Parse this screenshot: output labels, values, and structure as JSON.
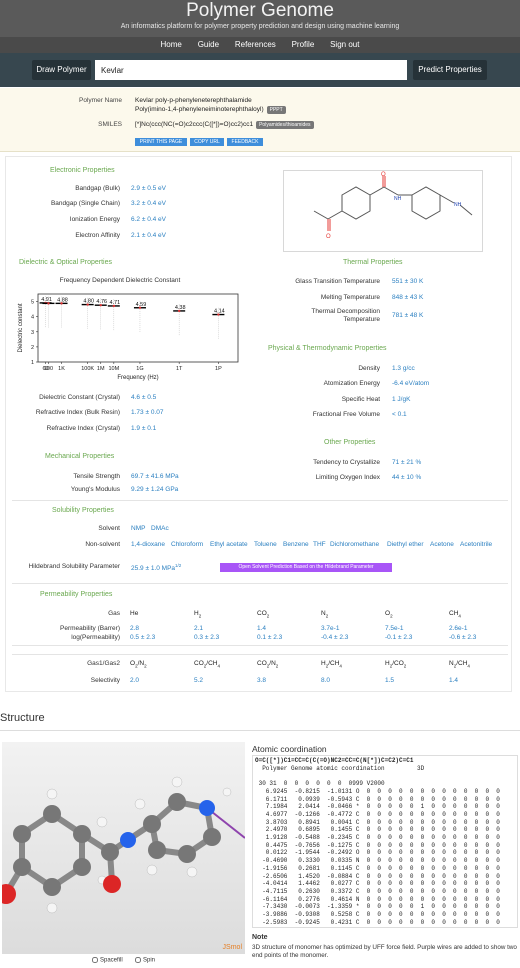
{
  "header": {
    "title": "Polymer Genome",
    "tagline": "An informatics platform for polymer property prediction and design using machine learning"
  },
  "nav": [
    "Home",
    "Guide",
    "References",
    "Profile",
    "Sign out"
  ],
  "search": {
    "draw_label": "Draw Polymer",
    "value": "Kevlar",
    "predict_label": "Predict Properties"
  },
  "info": {
    "name_label": "Polymer Name",
    "name_value": "Kevlar   poly-p-phenyleneterephthalamide",
    "name_value2": "Poly(imino-1,4-phenyleneiminoterephthaloyl)",
    "name_badge": "PPPT",
    "smiles_label": "SMILES",
    "smiles_value": "[*]Nc(ccc(NC(=O)c2ccc(C([*])=O)cc2)cc1",
    "smiles_badge": "Polyamides/thioamides",
    "buttons": [
      "PRINT THIS PAGE",
      "COPY URL",
      "FEEDBACK"
    ]
  },
  "electronic": {
    "title": "Electronic Properties",
    "rows": [
      {
        "label": "Bandgap (Bulk)",
        "value": "2.9 ± 0.5 eV"
      },
      {
        "label": "Bandgap (Single Chain)",
        "value": "3.2 ± 0.4 eV"
      },
      {
        "label": "Ionization Energy",
        "value": "6.2 ± 0.4 eV"
      },
      {
        "label": "Electron Affinity",
        "value": "2.1 ± 0.4 eV"
      }
    ]
  },
  "dielectric": {
    "title": "Dielectric & Optical Properties",
    "chart_title": "Frequency Dependent Dielectric Constant",
    "rows": [
      {
        "label": "Dielectric Constant (Crystal)",
        "value": "4.6 ± 0.5"
      },
      {
        "label": "Refractive Index (Bulk Resin)",
        "value": "1.73 ± 0.07"
      },
      {
        "label": "Refractive Index (Crystal)",
        "value": "1.9 ± 0.1"
      }
    ]
  },
  "chart_data": {
    "type": "scatter",
    "title": "Frequency Dependent Dielectric Constant",
    "xlabel": "Frequency (Hz)",
    "ylabel": "Dielectric constant",
    "x_ticks": [
      "60",
      "100",
      "1K",
      "100K",
      "1M",
      "10M",
      "1G",
      "1T",
      "1P"
    ],
    "y_ticks": [
      "1",
      "2",
      "3",
      "4",
      "5"
    ],
    "ylim": [
      1,
      5.5
    ],
    "x_log_hz": [
      1.78,
      2.0,
      3.0,
      5.0,
      6.0,
      7.0,
      9.0,
      12.0,
      15.0
    ],
    "values": [
      4.91,
      4.88,
      4.88,
      4.8,
      4.76,
      4.71,
      4.59,
      4.38,
      4.14
    ],
    "labels": [
      "4.91",
      "",
      "4.88",
      "4.80",
      "4.76",
      "4.71",
      "4.59",
      "4.38",
      "4.14"
    ],
    "grid": false
  },
  "mechanical": {
    "title": "Mechanical Properties",
    "rows": [
      {
        "label": "Tensile Strength",
        "value": "69.7 ± 41.6 MPa"
      },
      {
        "label": "Young's Modulus",
        "value": "9.29 ± 1.24 GPa"
      }
    ]
  },
  "thermal": {
    "title": "Thermal Properties",
    "rows": [
      {
        "label": "Glass Transition Temperature",
        "value": "551 ± 30 K"
      },
      {
        "label": "Melting Temperature",
        "value": "848 ± 43 K"
      },
      {
        "label": "Thermal Decomposition",
        "label2": "Temperature",
        "value": "781 ± 48 K"
      }
    ]
  },
  "physical": {
    "title": "Physical & Thermodynamic Properties",
    "rows": [
      {
        "label": "Density",
        "value": "1.3 g/cc"
      },
      {
        "label": "Atomization Energy",
        "value": "-6.4 eV/atom"
      },
      {
        "label": "Specific Heat",
        "value": "1 J/gK"
      },
      {
        "label": "Fractional Free Volume",
        "value": "< 0.1"
      }
    ]
  },
  "other": {
    "title": "Other Properties",
    "rows": [
      {
        "label": "Tendency to Crystallize",
        "value": "71 ± 21 %"
      },
      {
        "label": "Limiting Oxygen Index",
        "value": "44 ± 10 %"
      }
    ]
  },
  "solubility": {
    "title": "Solubility Properties",
    "solvent_label": "Solvent",
    "solvents": [
      "NMP",
      "DMAc"
    ],
    "nonsolvent_label": "Non-solvent",
    "nonsolvents": [
      "1,4-dioxane",
      "Chloroform",
      "Ethyl acetate",
      "Toluene",
      "Benzene",
      "THF",
      "Dichloromethane",
      "Diethyl ether",
      "Acetone",
      "Acetonitrile"
    ],
    "hildebrand_label": "Hildebrand Solubility Parameter",
    "hildebrand_value": "25.9 ± 1.0 MPa",
    "hildebrand_sup": "1/2",
    "hildebrand_button": "Open Solvent Prediction Based on the Hildebrand Parameter"
  },
  "permeability": {
    "title": "Permeability Properties",
    "gas_label": "Gas",
    "gases": [
      {
        "main": "He",
        "sub": ""
      },
      {
        "main": "H",
        "sub": "2"
      },
      {
        "main": "CO",
        "sub": "2"
      },
      {
        "main": "N",
        "sub": "2"
      },
      {
        "main": "O",
        "sub": "2"
      },
      {
        "main": "CH",
        "sub": "4"
      }
    ],
    "perm_label": "Permeability (Barrer)",
    "perm_values": [
      "2.8",
      "2.1",
      "1.4",
      "3.7e-1",
      "7.5e-1",
      "2.6e-1"
    ],
    "log_label": "log(Permeability)",
    "log_values": [
      "0.5 ± 2.3",
      "0.3 ± 2.3",
      "0.1 ± 2.3",
      "-0.4 ± 2.3",
      "-0.1 ± 2.3",
      "-0.6 ± 2.3"
    ],
    "pair_label": "Gas1/Gas2",
    "pairs": [
      {
        "a": "O",
        "as": "2",
        "b": "N",
        "bs": "2"
      },
      {
        "a": "CO",
        "as": "2",
        "b": "CH",
        "bs": "4"
      },
      {
        "a": "CO",
        "as": "2",
        "b": "N",
        "bs": "2"
      },
      {
        "a": "H",
        "as": "2",
        "b": "CH",
        "bs": "4"
      },
      {
        "a": "H",
        "as": "2",
        "b": "CO",
        "bs": "2"
      },
      {
        "a": "N",
        "as": "2",
        "b": "CH",
        "bs": "4"
      }
    ],
    "sel_label": "Selectivity",
    "sel_values": [
      "2.0",
      "5.2",
      "3.8",
      "8.0",
      "1.5",
      "1.4"
    ]
  },
  "structure": {
    "title": "Structure",
    "coord_title": "Atomic coordination",
    "coord_lines": [
      "O=C([*])C1=CC=C(C(=O)NC2=CC=C(N[*])C=C2)C=C1",
      "  Polymer Genome atomic coordination         3D",
      "",
      " 30 31  0  0  0  0  0  0  0999 V2000",
      "   6.9245  -0.8215  -1.0131 O  0  0  0  0  0  0  0  0  0  0  0  0  0",
      "   6.1711   0.0939  -0.5943 C  0  0  0  0  0  0  0  0  0  0  0  0  0",
      "   7.1984   2.0414  -0.0466 *  0  0  0  0  0  1  0  0  0  0  0  0  0",
      "   4.6977  -0.1266  -0.4772 C  0  0  0  0  0  0  0  0  0  0  0  0  0",
      "   3.8703   0.8941   0.0041 C  0  0  0  0  0  0  0  0  0  0  0  0  0",
      "   2.4970   0.6895   0.1455 C  0  0  0  0  0  0  0  0  0  0  0  0  0",
      "   1.9128  -0.5488  -0.2345 C  0  0  0  0  0  0  0  0  0  0  0  0  0",
      "   0.4475  -0.7656  -0.1275 C  0  0  0  0  0  0  0  0  0  0  0  0  0",
      "   0.0122  -1.9544  -0.2492 O  0  0  0  0  0  0  0  0  0  0  0  0  0",
      "  -0.4690   0.3330   0.0335 N  0  0  0  0  0  0  0  0  0  0  0  0  0",
      "  -1.9156   0.2681   0.1145 C  0  0  0  0  0  0  0  0  0  0  0  0  0",
      "  -2.6506   1.4520  -0.0884 C  0  0  0  0  0  0  0  0  0  0  0  0  0",
      "  -4.0414   1.4462   0.0277 C  0  0  0  0  0  0  0  0  0  0  0  0  0",
      "  -4.7115   0.2630   0.3372 C  0  0  0  0  0  0  0  0  0  0  0  0  0",
      "  -6.1164   0.2776   0.4614 N  0  0  0  0  0  0  0  0  0  0  0  0  0",
      "  -7.3430  -0.0073  -1.3359 *  0  0  0  0  0  1  0  0  0  0  0  0  0",
      "  -3.9886  -0.9308   0.5258 C  0  0  0  0  0  0  0  0  0  0  0  0  0",
      "  -2.5983  -0.9245   0.4231 C  0  0  0  0  0  0  0  0  0  0  0  0  0"
    ],
    "jsmol": "JSmol",
    "spacefill_label": "Spacefill",
    "spin_label": "Spin",
    "note_title": "Note",
    "note_text": "3D structure of monomer has optimized by UFF force field. Purple wires are added to show two end points of the monomer."
  }
}
